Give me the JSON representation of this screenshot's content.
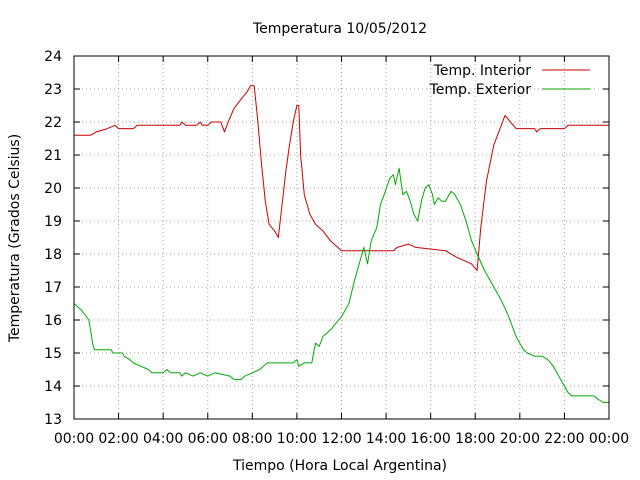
{
  "chart_data": {
    "type": "line",
    "title": "Temperatura 10/05/2012",
    "xlabel": "Tiempo (Hora Local Argentina)",
    "ylabel": "Temperatura (Grados Celsius)",
    "xlim": [
      "00:00",
      "24:00"
    ],
    "ylim": [
      13,
      24
    ],
    "grid": true,
    "legend_position": "top-right",
    "x_ticks": [
      "00:00",
      "02:00",
      "04:00",
      "06:00",
      "08:00",
      "10:00",
      "12:00",
      "14:00",
      "16:00",
      "18:00",
      "20:00",
      "22:00",
      "00:00"
    ],
    "y_ticks": [
      13,
      14,
      15,
      16,
      17,
      18,
      19,
      20,
      21,
      22,
      23,
      24
    ],
    "series": [
      {
        "name": "Temp. Interior",
        "color": "#cc0000",
        "points": [
          [
            "00:00",
            21.6
          ],
          [
            "00:45",
            21.6
          ],
          [
            "01:00",
            21.7
          ],
          [
            "01:30",
            21.8
          ],
          [
            "01:50",
            21.9
          ],
          [
            "02:00",
            21.8
          ],
          [
            "02:40",
            21.8
          ],
          [
            "02:50",
            21.9
          ],
          [
            "04:45",
            21.9
          ],
          [
            "04:50",
            22.0
          ],
          [
            "05:00",
            21.9
          ],
          [
            "05:30",
            21.9
          ],
          [
            "05:40",
            22.0
          ],
          [
            "05:45",
            21.9
          ],
          [
            "06:00",
            21.9
          ],
          [
            "06:10",
            22.0
          ],
          [
            "06:35",
            22.0
          ],
          [
            "06:45",
            21.7
          ],
          [
            "06:55",
            22.0
          ],
          [
            "07:10",
            22.4
          ],
          [
            "07:30",
            22.7
          ],
          [
            "07:45",
            22.9
          ],
          [
            "07:55",
            23.1
          ],
          [
            "08:05",
            23.1
          ],
          [
            "08:15",
            22.0
          ],
          [
            "08:25",
            20.7
          ],
          [
            "08:35",
            19.6
          ],
          [
            "08:45",
            18.9
          ],
          [
            "09:00",
            18.7
          ],
          [
            "09:10",
            18.5
          ],
          [
            "09:20",
            19.5
          ],
          [
            "09:30",
            20.5
          ],
          [
            "09:40",
            21.3
          ],
          [
            "09:50",
            22.0
          ],
          [
            "10:00",
            22.5
          ],
          [
            "10:05",
            22.5
          ],
          [
            "10:10",
            21.0
          ],
          [
            "10:20",
            19.8
          ],
          [
            "10:35",
            19.2
          ],
          [
            "10:50",
            18.9
          ],
          [
            "11:10",
            18.7
          ],
          [
            "11:30",
            18.4
          ],
          [
            "11:50",
            18.2
          ],
          [
            "12:00",
            18.1
          ],
          [
            "14:20",
            18.1
          ],
          [
            "14:30",
            18.2
          ],
          [
            "15:00",
            18.3
          ],
          [
            "15:20",
            18.2
          ],
          [
            "16:40",
            18.1
          ],
          [
            "17:10",
            17.9
          ],
          [
            "17:30",
            17.8
          ],
          [
            "17:50",
            17.7
          ],
          [
            "18:05",
            17.5
          ],
          [
            "18:15",
            18.8
          ],
          [
            "18:30",
            20.2
          ],
          [
            "18:50",
            21.3
          ],
          [
            "19:10",
            21.9
          ],
          [
            "19:20",
            22.2
          ],
          [
            "19:35",
            22.0
          ],
          [
            "19:50",
            21.8
          ],
          [
            "20:40",
            21.8
          ],
          [
            "20:45",
            21.7
          ],
          [
            "20:55",
            21.8
          ],
          [
            "22:00",
            21.8
          ],
          [
            "22:10",
            21.9
          ],
          [
            "24:00",
            21.9
          ]
        ]
      },
      {
        "name": "Temp. Exterior",
        "color": "#00aa00",
        "points": [
          [
            "00:00",
            16.5
          ],
          [
            "00:20",
            16.3
          ],
          [
            "00:40",
            16.0
          ],
          [
            "00:50",
            15.3
          ],
          [
            "00:55",
            15.1
          ],
          [
            "01:40",
            15.1
          ],
          [
            "01:45",
            15.0
          ],
          [
            "02:10",
            15.0
          ],
          [
            "02:15",
            14.9
          ],
          [
            "02:30",
            14.8
          ],
          [
            "02:40",
            14.7
          ],
          [
            "03:00",
            14.6
          ],
          [
            "03:20",
            14.5
          ],
          [
            "03:30",
            14.4
          ],
          [
            "04:00",
            14.4
          ],
          [
            "04:10",
            14.5
          ],
          [
            "04:20",
            14.4
          ],
          [
            "04:45",
            14.4
          ],
          [
            "04:50",
            14.3
          ],
          [
            "05:00",
            14.4
          ],
          [
            "05:20",
            14.3
          ],
          [
            "05:40",
            14.4
          ],
          [
            "06:00",
            14.3
          ],
          [
            "06:20",
            14.4
          ],
          [
            "07:00",
            14.3
          ],
          [
            "07:10",
            14.2
          ],
          [
            "07:30",
            14.2
          ],
          [
            "07:40",
            14.3
          ],
          [
            "08:00",
            14.4
          ],
          [
            "08:20",
            14.5
          ],
          [
            "08:40",
            14.7
          ],
          [
            "09:00",
            14.7
          ],
          [
            "09:50",
            14.7
          ],
          [
            "10:00",
            14.8
          ],
          [
            "10:05",
            14.6
          ],
          [
            "10:20",
            14.7
          ],
          [
            "10:40",
            14.7
          ],
          [
            "10:50",
            15.3
          ],
          [
            "11:00",
            15.2
          ],
          [
            "11:10",
            15.5
          ],
          [
            "11:30",
            15.7
          ],
          [
            "11:45",
            15.9
          ],
          [
            "12:00",
            16.1
          ],
          [
            "12:20",
            16.5
          ],
          [
            "12:35",
            17.2
          ],
          [
            "12:50",
            17.8
          ],
          [
            "13:00",
            18.2
          ],
          [
            "13:10",
            17.7
          ],
          [
            "13:20",
            18.4
          ],
          [
            "13:35",
            18.8
          ],
          [
            "13:45",
            19.5
          ],
          [
            "13:55",
            19.8
          ],
          [
            "14:10",
            20.3
          ],
          [
            "14:20",
            20.4
          ],
          [
            "14:25",
            20.1
          ],
          [
            "14:35",
            20.6
          ],
          [
            "14:45",
            19.8
          ],
          [
            "14:55",
            19.9
          ],
          [
            "15:05",
            19.6
          ],
          [
            "15:15",
            19.2
          ],
          [
            "15:25",
            19.0
          ],
          [
            "15:35",
            19.6
          ],
          [
            "15:45",
            20.0
          ],
          [
            "15:55",
            20.1
          ],
          [
            "16:05",
            19.8
          ],
          [
            "16:10",
            19.5
          ],
          [
            "16:20",
            19.7
          ],
          [
            "16:30",
            19.6
          ],
          [
            "16:40",
            19.6
          ],
          [
            "16:55",
            19.9
          ],
          [
            "17:05",
            19.8
          ],
          [
            "17:20",
            19.5
          ],
          [
            "17:35",
            19.0
          ],
          [
            "17:50",
            18.4
          ],
          [
            "18:05",
            18.0
          ],
          [
            "18:25",
            17.5
          ],
          [
            "18:50",
            17.0
          ],
          [
            "19:10",
            16.6
          ],
          [
            "19:30",
            16.1
          ],
          [
            "19:50",
            15.5
          ],
          [
            "20:10",
            15.1
          ],
          [
            "20:20",
            15.0
          ],
          [
            "20:40",
            14.9
          ],
          [
            "21:00",
            14.9
          ],
          [
            "21:15",
            14.8
          ],
          [
            "21:30",
            14.6
          ],
          [
            "21:45",
            14.3
          ],
          [
            "22:00",
            14.0
          ],
          [
            "22:10",
            13.8
          ],
          [
            "22:20",
            13.7
          ],
          [
            "23:00",
            13.7
          ],
          [
            "23:20",
            13.7
          ],
          [
            "23:30",
            13.6
          ],
          [
            "23:45",
            13.5
          ],
          [
            "24:00",
            13.5
          ]
        ]
      }
    ]
  }
}
